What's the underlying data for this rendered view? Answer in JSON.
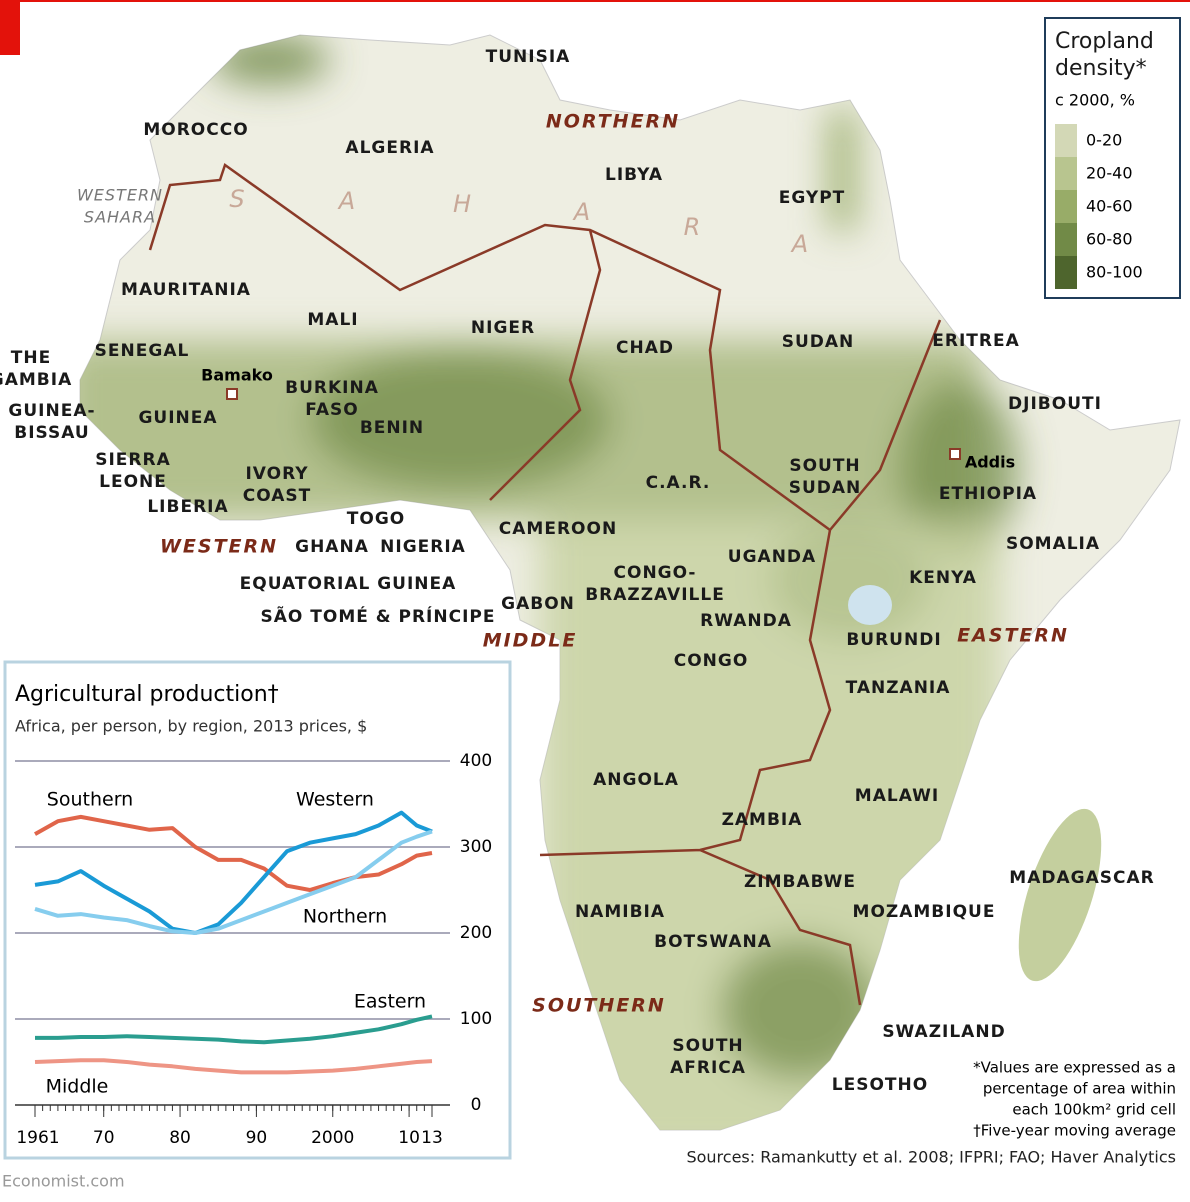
{
  "map": {
    "regions": [
      "NORTHERN",
      "WESTERN",
      "MIDDLE",
      "EASTERN",
      "SOUTHERN"
    ],
    "sahara": [
      "S",
      "A",
      "H",
      "A",
      "R",
      "A"
    ],
    "western_sahara": [
      "WESTERN",
      "SAHARA"
    ],
    "countries": [
      [
        "MOROCCO"
      ],
      [
        "ALGERIA"
      ],
      [
        "TUNISIA"
      ],
      [
        "LIBYA"
      ],
      [
        "EGYPT"
      ],
      [
        "MAURITANIA"
      ],
      [
        "MALI"
      ],
      [
        "NIGER"
      ],
      [
        "CHAD"
      ],
      [
        "SUDAN"
      ],
      [
        "ERITREA"
      ],
      [
        "DJIBOUTI"
      ],
      [
        "THE",
        "GAMBIA"
      ],
      [
        "SENEGAL"
      ],
      [
        "GUINEA-",
        "BISSAU"
      ],
      [
        "GUINEA"
      ],
      [
        "SIERRA",
        "LEONE"
      ],
      [
        "LIBERIA"
      ],
      [
        "IVORY",
        "COAST"
      ],
      [
        "BURKINA",
        "FASO"
      ],
      [
        "BENIN"
      ],
      [
        "TOGO"
      ],
      [
        "GHANA"
      ],
      [
        "NIGERIA"
      ],
      [
        "CAMEROON"
      ],
      [
        "EQUATORIAL GUINEA"
      ],
      [
        "SÃO TOMÉ & PRÍNCIPE"
      ],
      [
        "GABON"
      ],
      [
        "CONGO-",
        "BRAZZAVILLE"
      ],
      [
        "C.A.R."
      ],
      [
        "SOUTH",
        "SUDAN"
      ],
      [
        "ETHIOPIA"
      ],
      [
        "SOMALIA"
      ],
      [
        "UGANDA"
      ],
      [
        "KENYA"
      ],
      [
        "RWANDA"
      ],
      [
        "BURUNDI"
      ],
      [
        "CONGO"
      ],
      [
        "TANZANIA"
      ],
      [
        "ANGOLA"
      ],
      [
        "ZAMBIA"
      ],
      [
        "MALAWI"
      ],
      [
        "ZIMBABWE"
      ],
      [
        "MOZAMBIQUE"
      ],
      [
        "NAMIBIA"
      ],
      [
        "BOTSWANA"
      ],
      [
        "MADAGASCAR"
      ],
      [
        "SOUTH",
        "AFRICA"
      ],
      [
        "SWAZILAND"
      ],
      [
        "LESOTHO"
      ]
    ],
    "cities": [
      "Bamako",
      "Addis"
    ]
  },
  "legend": {
    "title": [
      "Cropland",
      "density*"
    ],
    "subtitle": "c 2000, %",
    "items": [
      "0-20",
      "20-40",
      "40-60",
      "60-80",
      "80-100"
    ],
    "colors": [
      "#d3d8b6",
      "#b8c58f",
      "#98ac68",
      "#718a47",
      "#4e652d"
    ]
  },
  "footnotes": [
    "*Values are expressed as a",
    "percentage of area within",
    "each 100km² grid cell",
    "†Five-year moving average"
  ],
  "source": "Sources: Ramankutty et al. 2008; IFPRI; FAO; Haver Analytics",
  "credit": "Economist.com",
  "chart_data": {
    "type": "line",
    "title": "Agricultural production†",
    "subtitle": "Africa, per person, by region, 2013 prices, $",
    "x": [
      1961,
      1964,
      1967,
      1970,
      1973,
      1976,
      1979,
      1982,
      1985,
      1988,
      1991,
      1994,
      1997,
      2000,
      2003,
      2006,
      2009,
      2011,
      2013
    ],
    "xlim": [
      1961,
      2013
    ],
    "xticks": [
      {
        "value": 1961,
        "label": "1961"
      },
      {
        "value": 1970,
        "label": "70"
      },
      {
        "value": 1980,
        "label": "80"
      },
      {
        "value": 1990,
        "label": "90"
      },
      {
        "value": 2000,
        "label": "2000"
      },
      {
        "value": 2010,
        "label": "10"
      },
      {
        "value": 2013,
        "label": "13"
      }
    ],
    "ylim": [
      0,
      400
    ],
    "yticks": [
      0,
      100,
      200,
      300,
      400
    ],
    "grid": true,
    "series": [
      {
        "name": "Southern",
        "color": "#e0654a",
        "values": [
          315,
          330,
          335,
          330,
          325,
          320,
          322,
          300,
          285,
          285,
          275,
          255,
          250,
          258,
          265,
          268,
          280,
          290,
          293
        ]
      },
      {
        "name": "Western",
        "color": "#1a9ad6",
        "values": [
          256,
          260,
          272,
          255,
          240,
          225,
          205,
          200,
          210,
          235,
          265,
          295,
          305,
          310,
          315,
          325,
          340,
          325,
          318
        ]
      },
      {
        "name": "Northern",
        "color": "#86cdee",
        "values": [
          228,
          220,
          222,
          218,
          215,
          208,
          202,
          200,
          205,
          215,
          225,
          235,
          245,
          255,
          265,
          285,
          305,
          312,
          318
        ]
      },
      {
        "name": "Eastern",
        "color": "#2a9d8f",
        "values": [
          78,
          78,
          79,
          79,
          80,
          79,
          78,
          77,
          76,
          74,
          73,
          75,
          77,
          80,
          84,
          88,
          94,
          99,
          103
        ]
      },
      {
        "name": "Middle",
        "color": "#ee9585",
        "values": [
          50,
          51,
          52,
          52,
          50,
          47,
          45,
          42,
          40,
          38,
          38,
          38,
          39,
          40,
          42,
          45,
          48,
          50,
          51
        ]
      }
    ]
  }
}
